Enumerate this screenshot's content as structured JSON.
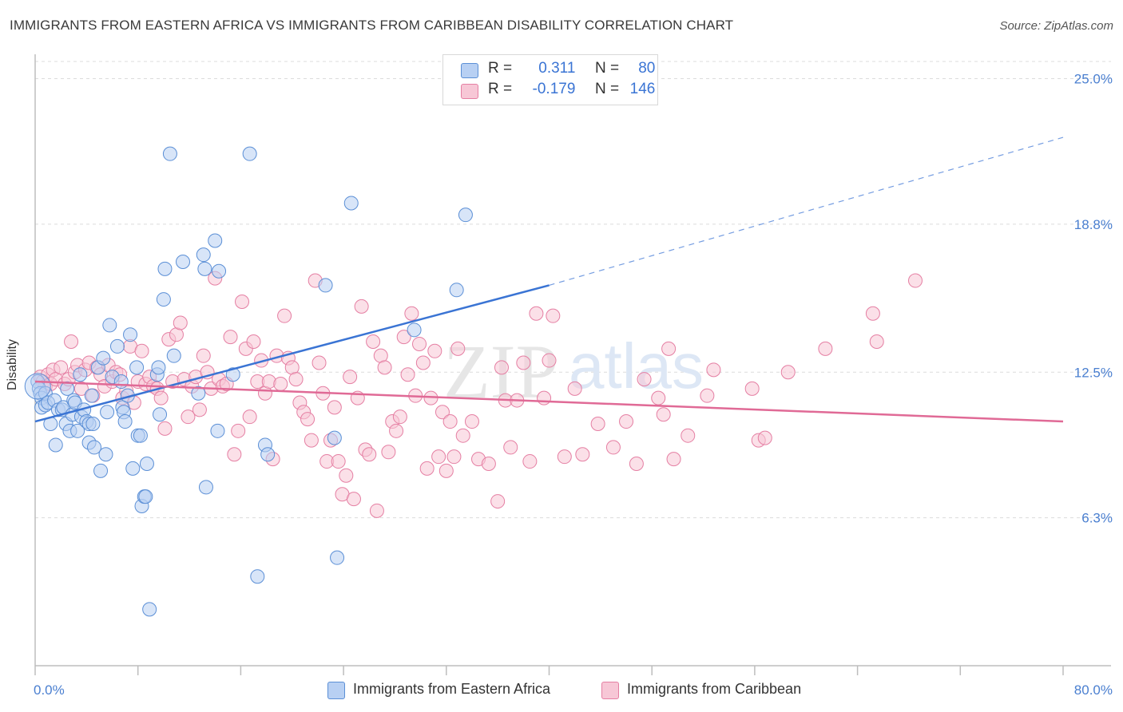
{
  "header": {
    "title": "IMMIGRANTS FROM EASTERN AFRICA VS IMMIGRANTS FROM CARIBBEAN DISABILITY CORRELATION CHART",
    "source": "Source: ZipAtlas.com"
  },
  "watermark": "ZIPatlas",
  "legend": {
    "rows": [
      {
        "r_label": "R =",
        "r_value": "0.311",
        "n_label": "N =",
        "n_value": "80",
        "color": "#5b8fd6"
      },
      {
        "r_label": "R =",
        "r_value": "-0.179",
        "n_label": "N =",
        "n_value": "146",
        "color": "#e57fa3"
      }
    ]
  },
  "bottom_legend": [
    {
      "label": "Immigrants from Eastern Africa",
      "fill": "#b8d0f3",
      "stroke": "#5b8fd6"
    },
    {
      "label": "Immigrants from Caribbean",
      "fill": "#f7c7d6",
      "stroke": "#e57fa3"
    }
  ],
  "chart_data": {
    "type": "scatter",
    "title": "IMMIGRANTS FROM EASTERN AFRICA VS IMMIGRANTS FROM CARIBBEAN DISABILITY CORRELATION CHART",
    "xlabel": "",
    "ylabel": "Disability",
    "xlim": [
      0,
      80
    ],
    "ylim": [
      0,
      25.8
    ],
    "x_tick_labels": [
      "0.0%",
      "80.0%"
    ],
    "y_ticks": [
      6.3,
      12.5,
      18.8,
      25.0
    ],
    "y_tick_labels": [
      "6.3%",
      "12.5%",
      "18.8%",
      "25.0%"
    ],
    "grid": "horizontal dashed",
    "legend_position": "top-center",
    "colors": {
      "blue": "#3a74d4",
      "pink": "#e06a96"
    },
    "series": [
      {
        "name": "Immigrants from Eastern Africa",
        "color": "#5b8fd6",
        "trend": {
          "x": [
            0,
            40
          ],
          "y": [
            10.4,
            16.2
          ],
          "dashed_to": [
            80,
            22.5
          ]
        },
        "points": [
          [
            0.2,
            12.1
          ],
          [
            0.3,
            11.8
          ],
          [
            0.4,
            11.6
          ],
          [
            0.5,
            11.4
          ],
          [
            0.5,
            11.0
          ],
          [
            0.8,
            11.1
          ],
          [
            0.8,
            11.6
          ],
          [
            1.0,
            11.2
          ],
          [
            1.2,
            10.3
          ],
          [
            1.5,
            11.3
          ],
          [
            1.6,
            9.4
          ],
          [
            1.8,
            10.9
          ],
          [
            2.1,
            10.9
          ],
          [
            2.2,
            11.0
          ],
          [
            2.4,
            10.3
          ],
          [
            2.5,
            11.8
          ],
          [
            2.7,
            10.0
          ],
          [
            2.9,
            10.7
          ],
          [
            3.0,
            11.3
          ],
          [
            3.1,
            11.2
          ],
          [
            3.3,
            10.0
          ],
          [
            3.5,
            12.4
          ],
          [
            3.6,
            10.6
          ],
          [
            3.8,
            10.9
          ],
          [
            4.0,
            10.4
          ],
          [
            4.2,
            10.3
          ],
          [
            4.2,
            9.5
          ],
          [
            4.4,
            11.5
          ],
          [
            4.5,
            10.3
          ],
          [
            4.6,
            9.3
          ],
          [
            4.9,
            12.7
          ],
          [
            5.1,
            8.3
          ],
          [
            5.3,
            13.1
          ],
          [
            5.5,
            9.0
          ],
          [
            5.6,
            10.8
          ],
          [
            5.8,
            14.5
          ],
          [
            6.0,
            12.3
          ],
          [
            6.4,
            13.6
          ],
          [
            6.7,
            12.1
          ],
          [
            6.8,
            11.0
          ],
          [
            6.9,
            10.8
          ],
          [
            7.0,
            10.4
          ],
          [
            7.2,
            11.5
          ],
          [
            7.4,
            14.1
          ],
          [
            7.6,
            8.4
          ],
          [
            7.9,
            12.7
          ],
          [
            8.0,
            9.8
          ],
          [
            8.2,
            9.8
          ],
          [
            8.3,
            6.8
          ],
          [
            8.5,
            7.2
          ],
          [
            8.6,
            7.2
          ],
          [
            8.7,
            8.6
          ],
          [
            8.9,
            2.4
          ],
          [
            9.5,
            12.4
          ],
          [
            9.6,
            12.7
          ],
          [
            9.7,
            10.7
          ],
          [
            10.0,
            15.6
          ],
          [
            10.1,
            16.9
          ],
          [
            10.5,
            21.8
          ],
          [
            10.8,
            13.2
          ],
          [
            11.5,
            17.2
          ],
          [
            12.7,
            11.6
          ],
          [
            13.1,
            17.5
          ],
          [
            13.2,
            16.9
          ],
          [
            13.3,
            7.6
          ],
          [
            14.0,
            18.1
          ],
          [
            14.2,
            10.0
          ],
          [
            14.3,
            16.8
          ],
          [
            15.4,
            12.4
          ],
          [
            16.7,
            21.8
          ],
          [
            17.3,
            3.8
          ],
          [
            17.9,
            9.4
          ],
          [
            18.1,
            9.0
          ],
          [
            22.6,
            16.2
          ],
          [
            23.3,
            9.7
          ],
          [
            23.5,
            4.6
          ],
          [
            24.6,
            19.7
          ],
          [
            29.5,
            14.3
          ],
          [
            33.5,
            19.2
          ],
          [
            32.8,
            16.0
          ]
        ]
      },
      {
        "name": "Immigrants from Caribbean",
        "color": "#e57fa3",
        "trend": {
          "x": [
            0,
            80
          ],
          "y": [
            12.1,
            10.4
          ]
        },
        "points": [
          [
            0.4,
            12.3
          ],
          [
            0.6,
            12.1
          ],
          [
            0.8,
            11.9
          ],
          [
            1.0,
            12.4
          ],
          [
            1.2,
            12.0
          ],
          [
            1.4,
            12.6
          ],
          [
            1.6,
            12.2
          ],
          [
            2.0,
            12.7
          ],
          [
            2.3,
            12.0
          ],
          [
            2.6,
            12.2
          ],
          [
            2.8,
            13.8
          ],
          [
            3.1,
            12.5
          ],
          [
            3.3,
            12.8
          ],
          [
            3.6,
            11.8
          ],
          [
            3.9,
            12.6
          ],
          [
            4.2,
            12.9
          ],
          [
            4.5,
            11.5
          ],
          [
            4.8,
            12.7
          ],
          [
            5.1,
            12.4
          ],
          [
            5.4,
            11.9
          ],
          [
            5.7,
            12.8
          ],
          [
            6.0,
            12.1
          ],
          [
            6.3,
            12.5
          ],
          [
            6.6,
            12.4
          ],
          [
            6.8,
            11.4
          ],
          [
            7.1,
            11.7
          ],
          [
            7.4,
            13.6
          ],
          [
            7.7,
            11.2
          ],
          [
            8.0,
            12.1
          ],
          [
            8.3,
            13.4
          ],
          [
            8.6,
            12.0
          ],
          [
            8.9,
            12.3
          ],
          [
            9.2,
            11.9
          ],
          [
            9.5,
            11.8
          ],
          [
            9.8,
            11.4
          ],
          [
            10.1,
            10.1
          ],
          [
            10.4,
            13.9
          ],
          [
            10.7,
            12.1
          ],
          [
            11.0,
            14.1
          ],
          [
            11.3,
            14.6
          ],
          [
            11.6,
            12.2
          ],
          [
            11.9,
            10.6
          ],
          [
            12.2,
            11.9
          ],
          [
            12.5,
            12.3
          ],
          [
            12.8,
            10.9
          ],
          [
            13.1,
            13.2
          ],
          [
            13.4,
            12.5
          ],
          [
            13.7,
            11.8
          ],
          [
            14.0,
            16.5
          ],
          [
            14.3,
            12.2
          ],
          [
            14.6,
            11.9
          ],
          [
            14.9,
            12.0
          ],
          [
            15.2,
            14.0
          ],
          [
            15.5,
            9.0
          ],
          [
            15.8,
            10.0
          ],
          [
            16.1,
            15.5
          ],
          [
            16.4,
            13.5
          ],
          [
            16.7,
            10.6
          ],
          [
            17.0,
            13.8
          ],
          [
            17.3,
            12.1
          ],
          [
            17.6,
            13.0
          ],
          [
            17.9,
            11.6
          ],
          [
            18.2,
            12.1
          ],
          [
            18.5,
            8.8
          ],
          [
            18.8,
            13.2
          ],
          [
            19.1,
            12.0
          ],
          [
            19.4,
            14.9
          ],
          [
            19.7,
            13.1
          ],
          [
            20.0,
            12.7
          ],
          [
            20.3,
            12.2
          ],
          [
            20.6,
            11.2
          ],
          [
            20.9,
            10.8
          ],
          [
            21.2,
            10.5
          ],
          [
            21.5,
            9.6
          ],
          [
            21.8,
            16.4
          ],
          [
            22.1,
            12.9
          ],
          [
            22.4,
            11.6
          ],
          [
            22.7,
            8.7
          ],
          [
            23.0,
            9.6
          ],
          [
            23.3,
            11.0
          ],
          [
            23.6,
            8.7
          ],
          [
            23.9,
            7.3
          ],
          [
            24.2,
            8.1
          ],
          [
            24.5,
            12.3
          ],
          [
            24.8,
            7.1
          ],
          [
            25.1,
            11.4
          ],
          [
            25.4,
            15.3
          ],
          [
            25.7,
            9.2
          ],
          [
            26.0,
            9.0
          ],
          [
            26.3,
            13.8
          ],
          [
            26.6,
            6.6
          ],
          [
            26.9,
            13.2
          ],
          [
            27.2,
            12.7
          ],
          [
            27.5,
            9.1
          ],
          [
            27.8,
            10.4
          ],
          [
            28.1,
            10.0
          ],
          [
            28.4,
            10.6
          ],
          [
            28.7,
            14.0
          ],
          [
            29.0,
            12.4
          ],
          [
            29.3,
            15.0
          ],
          [
            29.6,
            11.5
          ],
          [
            29.9,
            13.7
          ],
          [
            30.2,
            12.9
          ],
          [
            30.5,
            8.4
          ],
          [
            30.8,
            11.4
          ],
          [
            31.1,
            13.4
          ],
          [
            31.4,
            8.9
          ],
          [
            31.7,
            10.8
          ],
          [
            32.0,
            8.3
          ],
          [
            32.3,
            10.4
          ],
          [
            32.6,
            8.9
          ],
          [
            32.9,
            13.5
          ],
          [
            33.3,
            9.8
          ],
          [
            34.0,
            10.4
          ],
          [
            34.5,
            8.8
          ],
          [
            35.3,
            8.6
          ],
          [
            36.3,
            12.7
          ],
          [
            36.6,
            11.3
          ],
          [
            37.0,
            9.3
          ],
          [
            37.5,
            11.3
          ],
          [
            38.0,
            12.9
          ],
          [
            38.5,
            8.7
          ],
          [
            39.0,
            15.0
          ],
          [
            39.6,
            11.4
          ],
          [
            40.3,
            14.9
          ],
          [
            41.2,
            8.9
          ],
          [
            42.0,
            11.8
          ],
          [
            42.6,
            9.0
          ],
          [
            43.8,
            10.3
          ],
          [
            45.0,
            9.3
          ],
          [
            46.0,
            10.4
          ],
          [
            46.8,
            8.6
          ],
          [
            47.4,
            12.2
          ],
          [
            48.5,
            11.4
          ],
          [
            48.9,
            10.7
          ],
          [
            49.3,
            13.5
          ],
          [
            49.7,
            8.8
          ],
          [
            50.8,
            9.8
          ],
          [
            52.3,
            11.5
          ],
          [
            52.8,
            12.6
          ],
          [
            55.8,
            11.8
          ],
          [
            56.3,
            9.6
          ],
          [
            56.8,
            9.7
          ],
          [
            58.6,
            12.5
          ],
          [
            61.5,
            13.5
          ],
          [
            65.2,
            15.0
          ],
          [
            65.5,
            13.8
          ],
          [
            68.5,
            16.4
          ],
          [
            40.0,
            13.0
          ],
          [
            36.0,
            7.0
          ]
        ]
      }
    ]
  }
}
